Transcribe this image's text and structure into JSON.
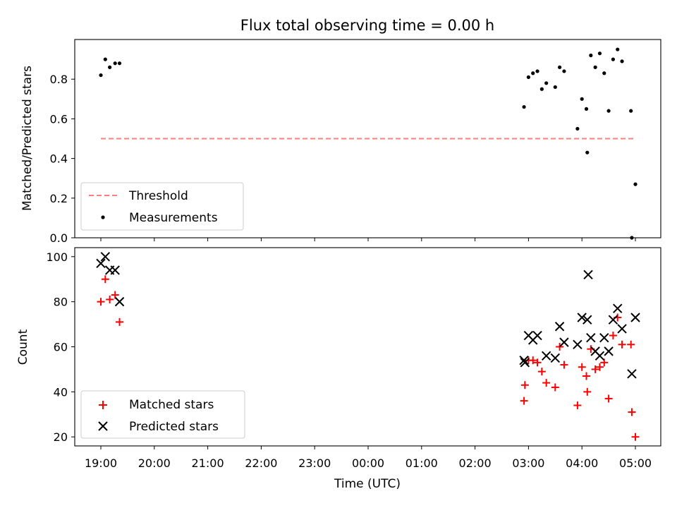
{
  "title": "Flux total observing time = 0.00 h",
  "xlabel": "Time (UTC)",
  "x_ticks": [
    "19:00",
    "20:00",
    "21:00",
    "22:00",
    "23:00",
    "00:00",
    "01:00",
    "02:00",
    "03:00",
    "04:00",
    "05:00"
  ],
  "colors": {
    "threshold": "#ff7f7f",
    "measurement": "#000000",
    "matched": "#ff0000",
    "predicted": "#000000"
  },
  "chart_data": [
    {
      "type": "scatter",
      "ylabel": "Matched/Predicted stars",
      "ylim": [
        0,
        1.0
      ],
      "y_ticks": [
        "0.0",
        "0.2",
        "0.4",
        "0.6",
        "0.8"
      ],
      "y_tick_values": [
        0,
        0.2,
        0.4,
        0.6,
        0.8
      ],
      "legend": {
        "placement": "lower-left",
        "entries": [
          "Threshold",
          "Measurements"
        ]
      },
      "threshold": {
        "name": "Threshold",
        "style": "dashed",
        "value": 0.5,
        "x": [
          "19:00",
          "05:00"
        ]
      },
      "series": [
        {
          "name": "Measurements",
          "points": [
            [
              "19:00",
              0.82
            ],
            [
              "19:05",
              0.9
            ],
            [
              "19:10",
              0.86
            ],
            [
              "19:16",
              0.88
            ],
            [
              "19:21",
              0.88
            ],
            [
              "02:55",
              0.66
            ],
            [
              "03:00",
              0.81
            ],
            [
              "03:05",
              0.83
            ],
            [
              "03:10",
              0.84
            ],
            [
              "03:15",
              0.75
            ],
            [
              "03:20",
              0.78
            ],
            [
              "03:30",
              0.76
            ],
            [
              "03:35",
              0.86
            ],
            [
              "03:40",
              0.84
            ],
            [
              "03:55",
              0.55
            ],
            [
              "04:00",
              0.7
            ],
            [
              "04:05",
              0.65
            ],
            [
              "04:06",
              0.43
            ],
            [
              "04:10",
              0.92
            ],
            [
              "04:15",
              0.86
            ],
            [
              "04:20",
              0.93
            ],
            [
              "04:25",
              0.83
            ],
            [
              "04:30",
              0.64
            ],
            [
              "04:35",
              0.9
            ],
            [
              "04:40",
              0.95
            ],
            [
              "04:45",
              0.89
            ],
            [
              "04:55",
              0.64
            ],
            [
              "04:56",
              0.0
            ],
            [
              "05:00",
              0.27
            ]
          ]
        }
      ]
    },
    {
      "type": "scatter",
      "ylabel": "Count",
      "ylim": [
        16,
        104
      ],
      "y_ticks": [
        "20",
        "40",
        "60",
        "80",
        "100"
      ],
      "y_tick_values": [
        20,
        40,
        60,
        80,
        100
      ],
      "legend": {
        "placement": "lower-left",
        "entries": [
          "Matched stars",
          "Predicted stars"
        ]
      },
      "series": [
        {
          "name": "Matched stars",
          "marker": "+",
          "points": [
            [
              "19:00",
              80
            ],
            [
              "19:05",
              90
            ],
            [
              "19:10",
              81
            ],
            [
              "19:16",
              83
            ],
            [
              "19:21",
              71
            ],
            [
              "02:55",
              36
            ],
            [
              "02:56",
              43
            ],
            [
              "03:00",
              54
            ],
            [
              "03:05",
              54
            ],
            [
              "03:10",
              53
            ],
            [
              "03:15",
              49
            ],
            [
              "03:20",
              44
            ],
            [
              "03:30",
              42
            ],
            [
              "03:35",
              60
            ],
            [
              "03:40",
              52
            ],
            [
              "03:55",
              34
            ],
            [
              "04:00",
              51
            ],
            [
              "04:05",
              47
            ],
            [
              "04:06",
              40
            ],
            [
              "04:10",
              59
            ],
            [
              "04:15",
              50
            ],
            [
              "04:20",
              51
            ],
            [
              "04:25",
              53
            ],
            [
              "04:30",
              37
            ],
            [
              "04:35",
              65
            ],
            [
              "04:40",
              73
            ],
            [
              "04:45",
              61
            ],
            [
              "04:55",
              61
            ],
            [
              "04:56",
              31
            ],
            [
              "05:00",
              20
            ]
          ]
        },
        {
          "name": "Predicted stars",
          "marker": "x",
          "points": [
            [
              "19:00",
              97
            ],
            [
              "19:05",
              100
            ],
            [
              "19:10",
              94
            ],
            [
              "19:16",
              94
            ],
            [
              "19:21",
              80
            ],
            [
              "02:55",
              54
            ],
            [
              "02:56",
              53
            ],
            [
              "03:00",
              65
            ],
            [
              "03:05",
              63
            ],
            [
              "03:10",
              65
            ],
            [
              "03:20",
              56
            ],
            [
              "03:30",
              55
            ],
            [
              "03:35",
              69
            ],
            [
              "03:40",
              62
            ],
            [
              "03:55",
              61
            ],
            [
              "04:00",
              73
            ],
            [
              "04:06",
              72
            ],
            [
              "04:07",
              92
            ],
            [
              "04:10",
              64
            ],
            [
              "04:15",
              58
            ],
            [
              "04:20",
              56
            ],
            [
              "04:25",
              64
            ],
            [
              "04:30",
              58
            ],
            [
              "04:35",
              72
            ],
            [
              "04:40",
              77
            ],
            [
              "04:45",
              68
            ],
            [
              "04:56",
              48
            ],
            [
              "05:00",
              73
            ]
          ]
        }
      ]
    }
  ]
}
